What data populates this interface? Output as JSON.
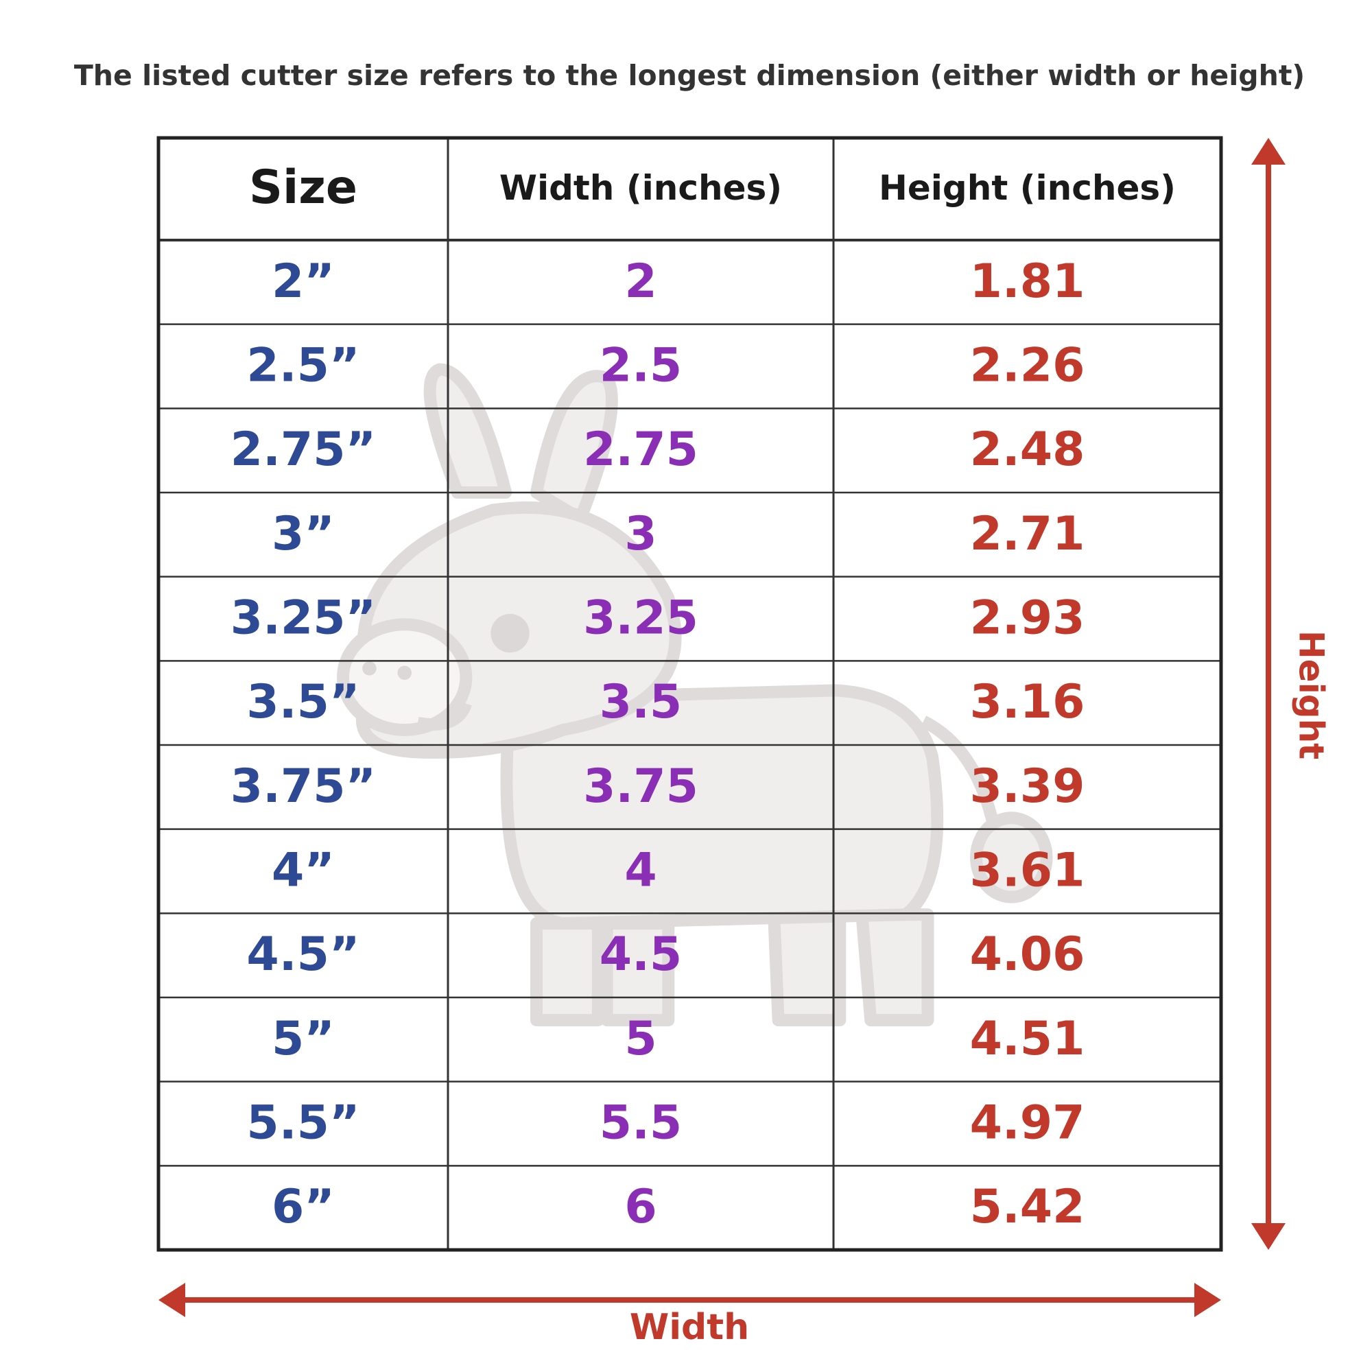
{
  "header": {
    "note": "The listed cutter size refers to the longest dimension (either width or height)"
  },
  "table": {
    "columns": [
      "Size",
      "Width (inches)",
      "Height (inches)"
    ],
    "rows": [
      [
        "2”",
        "2",
        "1.81"
      ],
      [
        "2.5”",
        "2.5",
        "2.26"
      ],
      [
        "2.75”",
        "2.75",
        "2.48"
      ],
      [
        "3”",
        "3",
        "2.71"
      ],
      [
        "3.25”",
        "3.25",
        "2.93"
      ],
      [
        "3.5”",
        "3.5",
        "3.16"
      ],
      [
        "3.75”",
        "3.75",
        "3.39"
      ],
      [
        "4”",
        "4",
        "3.61"
      ],
      [
        "4.5”",
        "4.5",
        "4.06"
      ],
      [
        "5”",
        "5",
        "4.51"
      ],
      [
        "5.5”",
        "5.5",
        "4.97"
      ],
      [
        "6”",
        "6",
        "5.42"
      ]
    ]
  },
  "arrows": {
    "width_label": "Width",
    "height_label": "Height"
  }
}
